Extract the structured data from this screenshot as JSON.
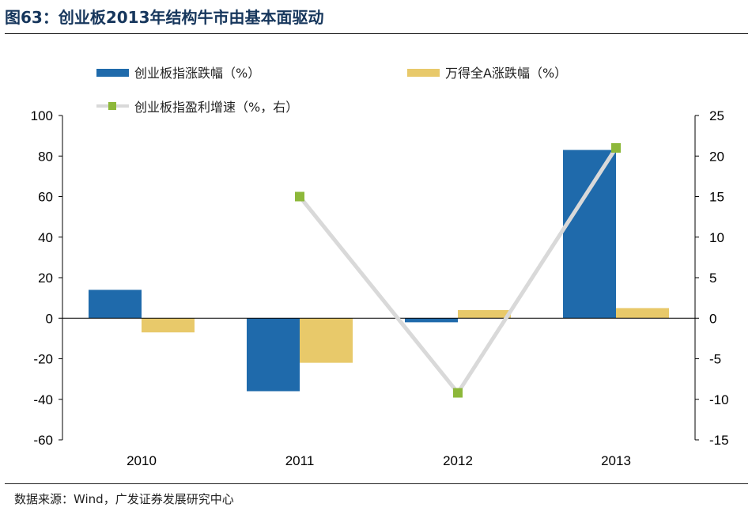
{
  "header": {
    "title": "图63：创业板2013年结构牛市由基本面驱动"
  },
  "footer": {
    "source": "数据来源：Wind，广发证券发展研究中心"
  },
  "colors": {
    "title": "#16365c",
    "series_cyb": "#1f6aab",
    "series_wdqa": "#e8c96a",
    "series_profit_line": "#d9d9d9",
    "series_profit_marker": "#8db83a"
  },
  "chart_data": {
    "type": "bar",
    "categories": [
      "2010",
      "2011",
      "2012",
      "2013"
    ],
    "series": [
      {
        "name": "创业板指涨跌幅（%）",
        "type": "bar",
        "axis": "left",
        "values": [
          14,
          -36,
          -2,
          83
        ]
      },
      {
        "name": "万得全A涨跌幅（%）",
        "type": "bar",
        "axis": "left",
        "values": [
          -7,
          -22,
          4,
          5
        ]
      },
      {
        "name": "创业板指盈利增速（%，右）",
        "type": "line",
        "axis": "right",
        "values": [
          null,
          15,
          -9.2,
          21
        ]
      }
    ],
    "yleft": {
      "range": [
        -60,
        100
      ],
      "ticks": [
        "100",
        "80",
        "60",
        "40",
        "20",
        "0",
        "-20",
        "-40",
        "-60"
      ]
    },
    "yright": {
      "range": [
        -15,
        25
      ],
      "ticks": [
        "25",
        "20",
        "15",
        "10",
        "5",
        "0",
        "-5",
        "-10",
        "-15"
      ]
    },
    "grid": false,
    "legend_position": "top-left"
  }
}
